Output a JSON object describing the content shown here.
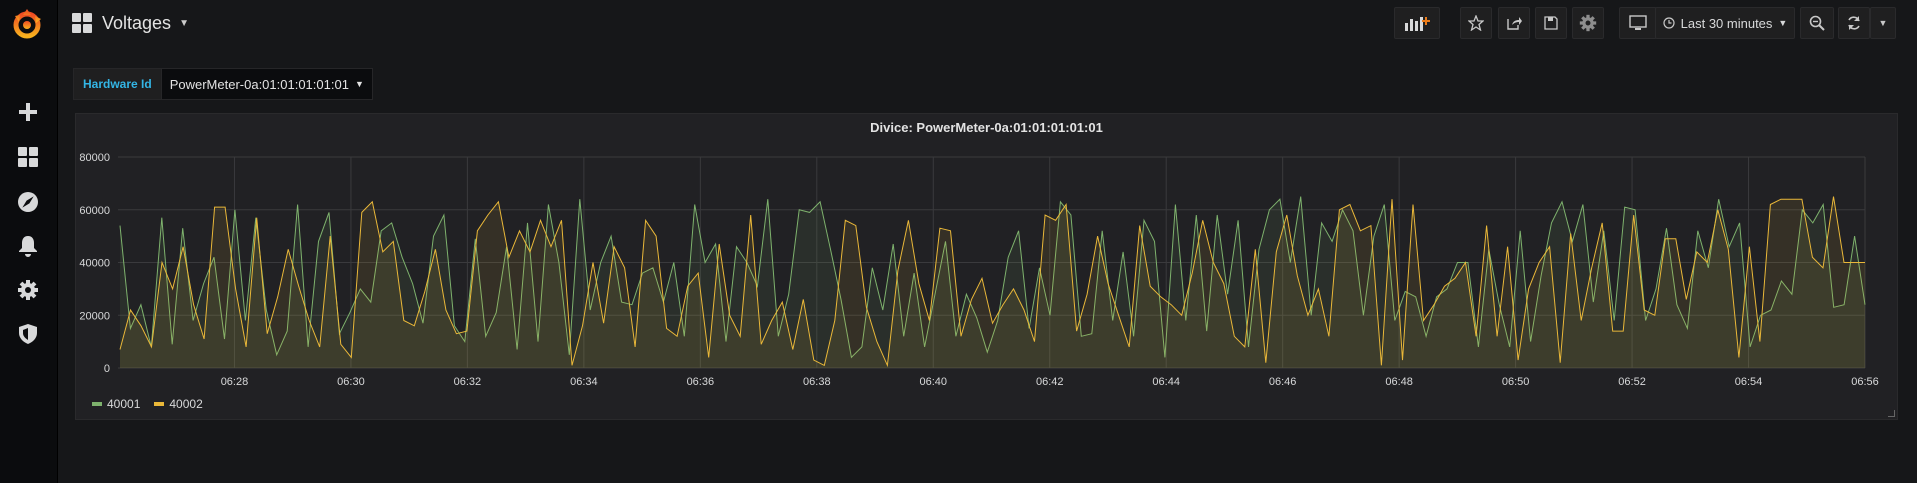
{
  "dashboard": {
    "title": "Voltages"
  },
  "toolbar": {
    "icons": [
      "add-panel-icon",
      "star-icon",
      "share-icon",
      "save-icon",
      "settings-icon",
      "tv-mode-icon",
      "zoom-out-icon",
      "refresh-icon",
      "refresh-interval-caret-icon"
    ],
    "time_range": "Last 30 minutes"
  },
  "sidebar": {
    "items": [
      "create-icon",
      "dashboards-icon",
      "explore-icon",
      "alerting-icon",
      "configuration-icon",
      "server-admin-icon"
    ]
  },
  "variable": {
    "label": "Hardware Id",
    "value": "PowerMeter-0a:01:01:01:01:01"
  },
  "colors": {
    "accent": "#33b5e5",
    "series1": "#7eb26d",
    "series2": "#eab839",
    "panel_bg": "#212124",
    "page_bg": "#161719"
  },
  "panel": {
    "title": "Divice: PowerMeter-0a:01:01:01:01:01"
  },
  "chart_data": {
    "type": "area",
    "title": "Divice: PowerMeter-0a:01:01:01:01:01",
    "ylim": [
      0,
      80000
    ],
    "y_ticks": [
      "80000",
      "60000",
      "40000",
      "20000",
      "0"
    ],
    "y_tick_values": [
      80000,
      60000,
      40000,
      20000,
      0
    ],
    "x_range": [
      "06:26",
      "06:56"
    ],
    "x_ticks": [
      "06:28",
      "06:30",
      "06:32",
      "06:34",
      "06:36",
      "06:38",
      "06:40",
      "06:42",
      "06:44",
      "06:46",
      "06:48",
      "06:50",
      "06:52",
      "06:54",
      "06:56"
    ],
    "grid": true,
    "legend": "bottom-left",
    "series": [
      {
        "name": "40001",
        "color": "#7eb26d",
        "values": [
          54000,
          15000,
          24000,
          8000,
          57000,
          9000,
          53000,
          18000,
          32000,
          42000,
          11000,
          60000,
          18000,
          57000,
          22000,
          5000,
          14000,
          62000,
          8000,
          48000,
          59000,
          13000,
          21000,
          30000,
          25000,
          52000,
          55000,
          42000,
          32000,
          17000,
          50000,
          58000,
          16000,
          10000,
          49000,
          12000,
          21000,
          46000,
          7000,
          55000,
          10000,
          62000,
          40000,
          5000,
          64000,
          22000,
          40000,
          50000,
          25000,
          24000,
          36000,
          38000,
          25000,
          40000,
          12000,
          62000,
          40000,
          47000,
          10000,
          46000,
          40000,
          31000,
          64000,
          12000,
          28000,
          60000,
          59000,
          63000,
          45000,
          26000,
          4000,
          8000,
          38000,
          22000,
          47000,
          12000,
          36000,
          8000,
          28000,
          48000,
          12000,
          28000,
          19000,
          6000,
          18000,
          42000,
          52000,
          15000,
          38000,
          20000,
          63000,
          58000,
          12000,
          13000,
          52000,
          18000,
          44000,
          12000,
          56000,
          48000,
          4000,
          62000,
          18000,
          58000,
          14000,
          58000,
          28000,
          56000,
          8000,
          45000,
          60000,
          64000,
          40000,
          65000,
          20000,
          55000,
          48000,
          60000,
          52000,
          20000,
          50000,
          62000,
          18000,
          29000,
          27000,
          12000,
          27000,
          30000,
          40000,
          40000,
          8000,
          45000,
          24000,
          8000,
          52000,
          10000,
          35000,
          55000,
          63000,
          48000,
          62000,
          25000,
          52000,
          18000,
          61000,
          60000,
          18000,
          30000,
          53000,
          24000,
          15000,
          52000,
          38000,
          64000,
          46000,
          55000,
          8000,
          20000,
          22000,
          33000,
          28000,
          60000,
          55000,
          62000,
          23000,
          24000,
          50000,
          24000
        ]
      },
      {
        "name": "40002",
        "color": "#eab839",
        "values": [
          7000,
          22000,
          16000,
          8000,
          40000,
          30000,
          46000,
          24000,
          11000,
          61000,
          61000,
          30000,
          8000,
          57000,
          13000,
          27000,
          45000,
          31000,
          18000,
          8000,
          50000,
          9000,
          4000,
          59000,
          63000,
          44000,
          48000,
          18000,
          16000,
          29000,
          45000,
          22000,
          13000,
          14000,
          52000,
          58000,
          63000,
          42000,
          52000,
          44000,
          56000,
          46000,
          56000,
          1000,
          16000,
          40000,
          17000,
          46000,
          38000,
          8000,
          56000,
          50000,
          15000,
          12000,
          31000,
          36000,
          4000,
          47000,
          20000,
          12000,
          58000,
          9000,
          18000,
          25000,
          7000,
          26000,
          3000,
          1000,
          18000,
          56000,
          54000,
          23000,
          10000,
          1000,
          37000,
          56000,
          32000,
          18000,
          53000,
          52000,
          12000,
          26000,
          34000,
          17000,
          24000,
          30000,
          22000,
          10000,
          58000,
          56000,
          62000,
          14000,
          28000,
          50000,
          32000,
          20000,
          8000,
          54000,
          31000,
          27000,
          24000,
          20000,
          36000,
          56000,
          40000,
          32000,
          12000,
          8000,
          45000,
          2000,
          44000,
          58000,
          35000,
          20000,
          30000,
          12000,
          60000,
          62000,
          52000,
          54000,
          1000,
          64000,
          3000,
          62000,
          18000,
          24000,
          31000,
          34000,
          40000,
          12000,
          54000,
          12000,
          46000,
          3000,
          30000,
          40000,
          46000,
          2000,
          51000,
          18000,
          38000,
          55000,
          14000,
          14000,
          58000,
          22000,
          20000,
          49000,
          49000,
          26000,
          44000,
          40000,
          60000,
          45000,
          4000,
          46000,
          10000,
          62000,
          64000,
          64000,
          64000,
          42000,
          38000,
          65000,
          40000,
          40000,
          40000
        ]
      }
    ]
  }
}
